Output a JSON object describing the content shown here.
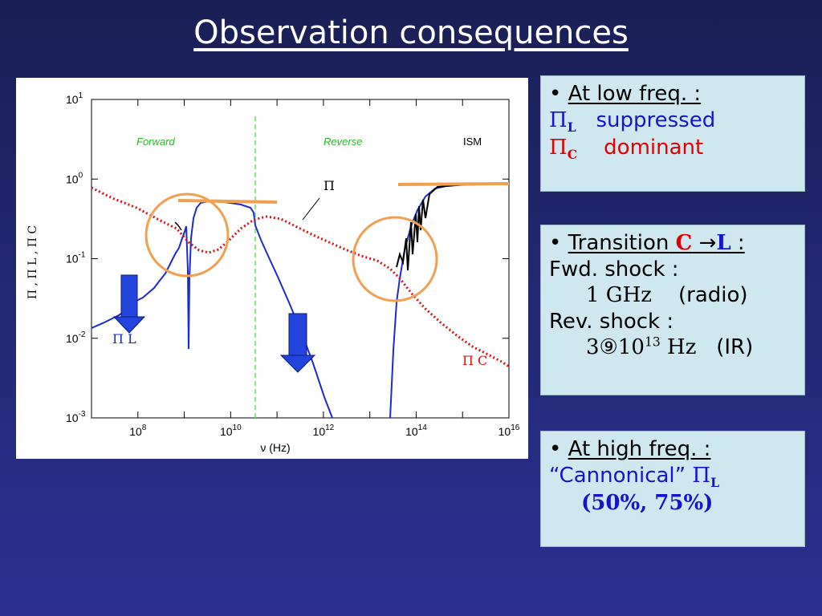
{
  "slide": {
    "title": "Observation  consequences"
  },
  "chart_data": {
    "type": "line",
    "x_axis_label": "ν   (Hz)",
    "y_axis_label": "Π ,  Π L ,  Π C",
    "x_ticks": [
      "10^8",
      "10^10",
      "10^12",
      "10^14",
      "10^16"
    ],
    "y_ticks": [
      "10^1",
      "10^0",
      "10^-1",
      "10^-2",
      "10^-3"
    ],
    "region_labels": [
      "Forward",
      "Reverse",
      "ISM"
    ],
    "series_labels": {
      "pi": "Π",
      "pi_l": "Π L",
      "pi_c": "Π C"
    }
  },
  "box1": {
    "bullet": "•",
    "heading": "At  low freq. :",
    "line1_sym": "Π",
    "line1_sub": "L",
    "line1_text": "suppressed",
    "line2_sym": "Π",
    "line2_sub": "C",
    "line2_text": "dominant"
  },
  "box2": {
    "bullet": "•",
    "heading": "Transition",
    "c": "C",
    "arrow": "→",
    "l": "L",
    "colon": ":",
    "fwd": "Fwd.  shock :",
    "fwd_val": "1  GHz",
    "fwd_note": "(radio)",
    "rev": "Rev.  shock :",
    "rev_val_base": "3⑨10",
    "rev_val_exp": "13",
    "rev_val_unit": " Hz",
    "rev_note": "(IR)"
  },
  "box3": {
    "bullet": "•",
    "heading": "At  high freq. :",
    "line1": "“Cannonical”",
    "line1_sym": "Π",
    "line1_sub": "L",
    "line2": "(50%, 75%)"
  }
}
